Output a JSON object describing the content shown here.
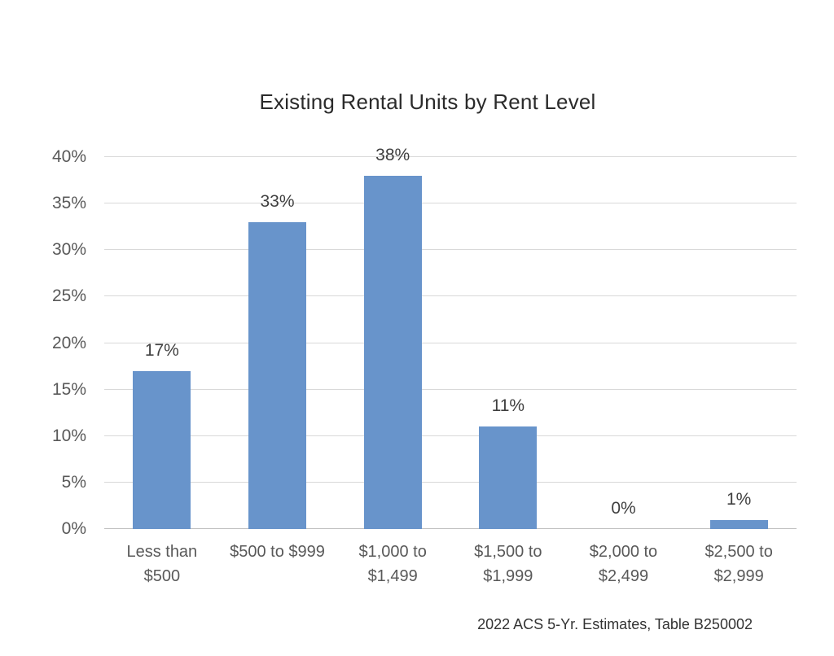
{
  "chart_data": {
    "type": "bar",
    "title": "Existing Rental Units by Rent Level",
    "categories": [
      "Less than $500",
      "$500 to $999",
      "$1,000 to $1,499",
      "$1,500 to $1,999",
      "$2,000 to $2,499",
      "$2,500 to $2,999"
    ],
    "category_label_lines": [
      [
        "Less than",
        "$500"
      ],
      [
        "$500 to $999"
      ],
      [
        "$1,000 to",
        "$1,499"
      ],
      [
        "$1,500 to",
        "$1,999"
      ],
      [
        "$2,000 to",
        "$2,499"
      ],
      [
        "$2,500 to",
        "$2,999"
      ]
    ],
    "values": [
      17,
      33,
      38,
      11,
      0,
      1
    ],
    "data_labels": [
      "17%",
      "33%",
      "38%",
      "11%",
      "0%",
      "1%"
    ],
    "y_tick_values": [
      0,
      5,
      10,
      15,
      20,
      25,
      30,
      35,
      40
    ],
    "y_tick_labels": [
      "0%",
      "5%",
      "10%",
      "15%",
      "20%",
      "25%",
      "30%",
      "35%",
      "40%"
    ],
    "ylim": [
      0,
      40
    ],
    "xlabel": "",
    "ylabel": "",
    "grid": true,
    "legend_position": "none",
    "colors": {
      "bar": "#6894CB",
      "gridline": "#D9D9D9",
      "axis_line": "#C0C0C0",
      "tick_label": "#595959",
      "data_label": "#3F3F3F",
      "title": "#2B2B2B"
    }
  },
  "footer": {
    "source": "2022 ACS 5-Yr. Estimates, Table B250002"
  }
}
